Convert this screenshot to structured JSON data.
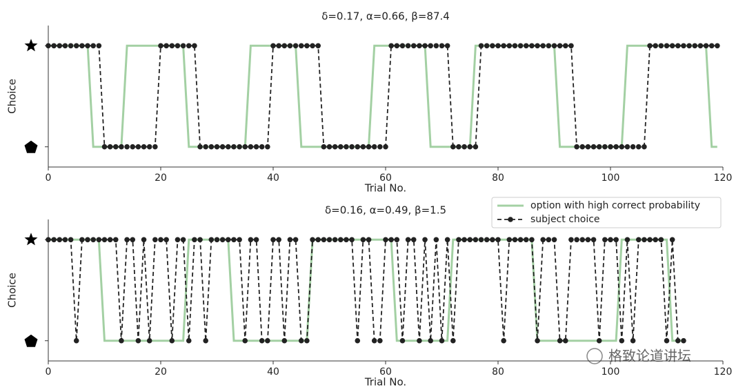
{
  "watermark": "格致论道讲坛",
  "chart_data": [
    {
      "type": "line",
      "title": "δ=0.17, α=0.66, β=87.4",
      "xlabel": "Trial No.",
      "ylabel": "Choice",
      "xlim": [
        0,
        120
      ],
      "xticks": [
        0,
        20,
        40,
        60,
        80,
        100,
        120
      ],
      "ylim": [
        -0.2,
        1.2
      ],
      "yticks": [
        0,
        1
      ],
      "x": [
        0,
        1,
        2,
        3,
        4,
        5,
        6,
        7,
        8,
        9,
        10,
        11,
        12,
        13,
        14,
        15,
        16,
        17,
        18,
        19,
        20,
        21,
        22,
        23,
        24,
        25,
        26,
        27,
        28,
        29,
        30,
        31,
        32,
        33,
        34,
        35,
        36,
        37,
        38,
        39,
        40,
        41,
        42,
        43,
        44,
        45,
        46,
        47,
        48,
        49,
        50,
        51,
        52,
        53,
        54,
        55,
        56,
        57,
        58,
        59,
        60,
        61,
        62,
        63,
        64,
        65,
        66,
        67,
        68,
        69,
        70,
        71,
        72,
        73,
        74,
        75,
        76,
        77,
        78,
        79,
        80,
        81,
        82,
        83,
        84,
        85,
        86,
        87,
        88,
        89,
        90,
        91,
        92,
        93,
        94,
        95,
        96,
        97,
        98,
        99,
        100,
        101,
        102,
        103,
        104,
        105,
        106,
        107,
        108,
        109,
        110,
        111,
        112,
        113,
        114,
        115,
        116,
        117,
        118,
        119
      ],
      "series": [
        {
          "color": "#a3d0a3",
          "linestyle": "-",
          "values": [
            1,
            1,
            1,
            1,
            1,
            1,
            1,
            1,
            0,
            0,
            0,
            0,
            0,
            0,
            1,
            1,
            1,
            1,
            1,
            1,
            1,
            1,
            1,
            1,
            1,
            0,
            0,
            0,
            0,
            0,
            0,
            0,
            0,
            0,
            0,
            0,
            1,
            1,
            1,
            1,
            1,
            1,
            1,
            1,
            1,
            0,
            0,
            0,
            0,
            0,
            0,
            0,
            0,
            0,
            0,
            0,
            0,
            0,
            1,
            1,
            1,
            1,
            1,
            1,
            1,
            1,
            1,
            1,
            0,
            0,
            0,
            0,
            0,
            0,
            0,
            0,
            1,
            1,
            1,
            1,
            1,
            1,
            1,
            1,
            1,
            1,
            1,
            1,
            1,
            1,
            1,
            0,
            0,
            0,
            0,
            0,
            0,
            0,
            0,
            0,
            0,
            0,
            0,
            1,
            1,
            1,
            1,
            1,
            1,
            1,
            1,
            1,
            1,
            1,
            1,
            1,
            1,
            1,
            0,
            0
          ]
        },
        {
          "color": "#222222",
          "linestyle": "--",
          "marker": "o",
          "values": [
            1,
            1,
            1,
            1,
            1,
            1,
            1,
            1,
            1,
            1,
            0,
            0,
            0,
            0,
            0,
            0,
            0,
            0,
            0,
            0,
            1,
            1,
            1,
            1,
            1,
            1,
            1,
            0,
            0,
            0,
            0,
            0,
            0,
            0,
            0,
            0,
            0,
            0,
            0,
            0,
            1,
            1,
            1,
            1,
            1,
            1,
            1,
            1,
            1,
            0,
            0,
            0,
            0,
            0,
            0,
            0,
            0,
            0,
            0,
            0,
            0,
            1,
            1,
            1,
            1,
            1,
            1,
            1,
            1,
            1,
            1,
            1,
            0,
            0,
            0,
            0,
            0,
            1,
            1,
            1,
            1,
            1,
            1,
            1,
            1,
            1,
            1,
            1,
            1,
            1,
            1,
            1,
            1,
            1,
            0,
            0,
            0,
            0,
            0,
            0,
            0,
            0,
            0,
            0,
            0,
            0,
            0,
            1,
            1,
            1,
            1,
            1,
            1,
            1,
            1,
            1,
            1,
            1,
            1,
            1
          ]
        }
      ]
    },
    {
      "type": "line",
      "title": "δ=0.16, α=0.49, β=1.5",
      "xlabel": "Trial No.",
      "ylabel": "Choice",
      "xlim": [
        0,
        120
      ],
      "xticks": [
        0,
        20,
        40,
        60,
        80,
        100,
        120
      ],
      "ylim": [
        -0.2,
        1.2
      ],
      "yticks": [
        0,
        1
      ],
      "legend": "upper right",
      "x": [
        0,
        1,
        2,
        3,
        4,
        5,
        6,
        7,
        8,
        9,
        10,
        11,
        12,
        13,
        14,
        15,
        16,
        17,
        18,
        19,
        20,
        21,
        22,
        23,
        24,
        25,
        26,
        27,
        28,
        29,
        30,
        31,
        32,
        33,
        34,
        35,
        36,
        37,
        38,
        39,
        40,
        41,
        42,
        43,
        44,
        45,
        46,
        47,
        48,
        49,
        50,
        51,
        52,
        53,
        54,
        55,
        56,
        57,
        58,
        59,
        60,
        61,
        62,
        63,
        64,
        65,
        66,
        67,
        68,
        69,
        70,
        71,
        72,
        73,
        74,
        75,
        76,
        77,
        78,
        79,
        80,
        81,
        82,
        83,
        84,
        85,
        86,
        87,
        88,
        89,
        90,
        91,
        92,
        93,
        94,
        95,
        96,
        97,
        98,
        99,
        100,
        101,
        102,
        103,
        104,
        105,
        106,
        107,
        108,
        109,
        110,
        111,
        112,
        113
      ],
      "series": [
        {
          "name": "option with high correct probability",
          "color": "#a3d0a3",
          "linestyle": "-",
          "values": [
            1,
            1,
            1,
            1,
            1,
            1,
            1,
            1,
            1,
            1,
            0,
            0,
            0,
            0,
            0,
            0,
            0,
            0,
            0,
            0,
            0,
            0,
            0,
            0,
            0,
            1,
            1,
            1,
            1,
            1,
            1,
            1,
            1,
            0,
            0,
            0,
            0,
            0,
            0,
            0,
            0,
            0,
            0,
            0,
            0,
            0,
            0,
            1,
            1,
            1,
            1,
            1,
            1,
            1,
            1,
            1,
            1,
            1,
            1,
            1,
            1,
            1,
            0,
            0,
            0,
            0,
            0,
            0,
            0,
            0,
            0,
            0,
            1,
            1,
            1,
            1,
            1,
            1,
            1,
            1,
            1,
            1,
            1,
            1,
            1,
            1,
            1,
            0,
            0,
            0,
            0,
            0,
            0,
            0,
            0,
            0,
            0,
            0,
            0,
            0,
            0,
            0,
            1,
            1,
            1,
            1,
            1,
            1,
            1,
            1,
            1,
            0,
            0,
            0
          ]
        },
        {
          "name": "subject choice",
          "color": "#222222",
          "linestyle": "--",
          "marker": "o",
          "values": [
            1,
            1,
            1,
            1,
            1,
            0,
            1,
            1,
            1,
            1,
            1,
            1,
            1,
            0,
            1,
            1,
            0,
            1,
            0,
            1,
            1,
            1,
            0,
            1,
            1,
            0,
            1,
            1,
            0,
            1,
            1,
            1,
            1,
            1,
            1,
            0,
            1,
            1,
            0,
            0,
            1,
            1,
            0,
            1,
            1,
            0,
            0,
            1,
            1,
            1,
            1,
            1,
            1,
            1,
            1,
            0,
            1,
            1,
            0,
            0,
            1,
            1,
            1,
            0,
            1,
            1,
            0,
            1,
            0,
            1,
            0,
            1,
            0,
            1,
            1,
            1,
            1,
            1,
            1,
            1,
            1,
            0,
            1,
            1,
            1,
            1,
            1,
            0,
            1,
            1,
            1,
            0,
            0,
            1,
            1,
            1,
            1,
            1,
            0,
            1,
            1,
            1,
            0,
            1,
            0,
            1,
            1,
            1,
            1,
            1,
            0,
            1,
            0,
            0
          ]
        }
      ]
    }
  ]
}
